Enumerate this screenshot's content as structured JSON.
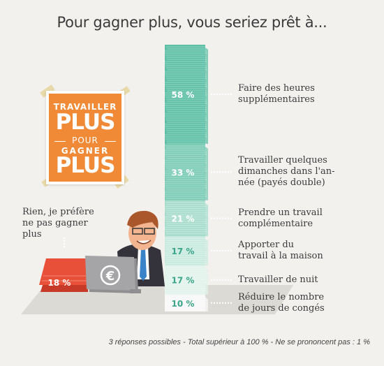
{
  "title": "Pour gagner plus, vous seriez prêt à...",
  "poster": {
    "line1": "TRAVAILLER",
    "line2": "PLUS",
    "line3": "POUR",
    "line4": "GAGNER",
    "line5": "PLUS"
  },
  "chart_data": {
    "type": "bar",
    "categories": [
      "Faire des heures supplémentaires",
      "Travailler quelques dimanches dans l'année (payés double)",
      "Prendre un travail complémentaire",
      "Apporter du travail à la maison",
      "Travailler de nuit",
      "Réduire le nombre de jours de congés"
    ],
    "values": [
      58,
      33,
      21,
      17,
      17,
      10
    ],
    "value_labels": [
      "58 %",
      "33 %",
      "21 %",
      "17 %",
      "17 %",
      "10 %"
    ],
    "category_lines": [
      [
        "Faire des heures",
        "supplémentaires"
      ],
      [
        "Travailler quelques",
        "dimanches dans l'an-",
        "née (payés double)"
      ],
      [
        "Prendre un travail",
        "complémentaire"
      ],
      [
        "Apporter du",
        "travail à la maison"
      ],
      [
        "Travailler de nuit"
      ],
      [
        "Réduire le nombre",
        "de jours de congés"
      ]
    ],
    "colors": [
      "#5dbfa5",
      "#7ccbb5",
      "#a7dccd",
      "#c9eadf",
      "#e2f3ec",
      "#f7f8f7"
    ],
    "value_colors": [
      "#ffffff",
      "#ffffff",
      "#ffffff",
      "#3aa58a",
      "#3aa58a",
      "#3aa58a"
    ],
    "extra": {
      "label_lines": [
        "Rien, je préfère",
        "ne pas gagner",
        "plus"
      ],
      "value": 18,
      "value_label": "18 %",
      "color": "#e8503a"
    }
  },
  "footnote": "3 réponses possibles - Total supérieur à 100 % - Ne se prononcent pas : 1 %",
  "icons": {
    "monitor": "euro-icon"
  }
}
